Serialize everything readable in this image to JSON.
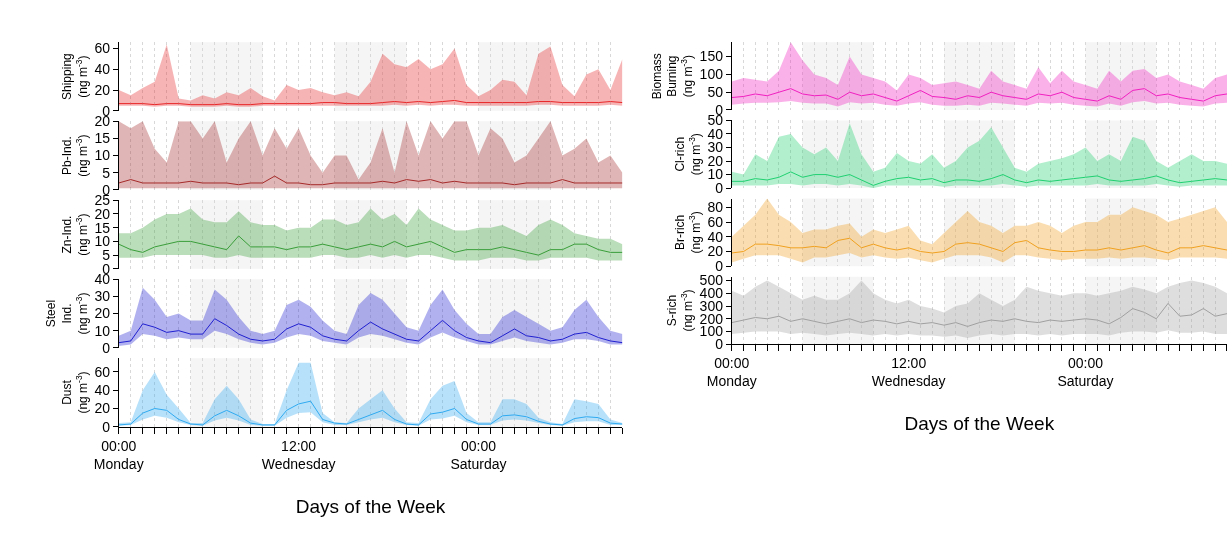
{
  "chart_data": [
    {
      "type": "line",
      "ylabel": "Shipping (ng m$^{-3}$)",
      "tick_labels": "y",
      "grid": "x",
      "ylim": [
        0,
        66
      ],
      "yticks": [
        0,
        20,
        40,
        60
      ],
      "series": [
        {
          "color": "#e8282a",
          "values": [
            7,
            7,
            7,
            6,
            7,
            7,
            6,
            6,
            6,
            7,
            6,
            6,
            7,
            7,
            7,
            7,
            7,
            8,
            8,
            7,
            7,
            7,
            8,
            9,
            8,
            9,
            8,
            9,
            10,
            8,
            8,
            8,
            8,
            8,
            8,
            9,
            9,
            8,
            8,
            8,
            8,
            9,
            8
          ],
          "lower": [
            5,
            5,
            5,
            4,
            5,
            5,
            4,
            4,
            4,
            5,
            4,
            4,
            5,
            5,
            5,
            5,
            5,
            5,
            5,
            5,
            5,
            5,
            5,
            6,
            5,
            6,
            5,
            6,
            6,
            5,
            5,
            5,
            5,
            5,
            5,
            6,
            6,
            5,
            5,
            5,
            5,
            6,
            5
          ],
          "upper": [
            20,
            15,
            22,
            28,
            64,
            12,
            10,
            15,
            12,
            18,
            15,
            22,
            14,
            10,
            25,
            20,
            22,
            18,
            15,
            18,
            14,
            28,
            55,
            45,
            42,
            50,
            40,
            45,
            60,
            25,
            14,
            20,
            30,
            28,
            15,
            55,
            62,
            25,
            14,
            35,
            40,
            20,
            50
          ]
        }
      ]
    },
    {
      "type": "line",
      "ylabel": "Pb-Ind. (ng m$^{-3}$)",
      "tick_labels": "y",
      "grid": "x",
      "ylim": [
        0,
        20
      ],
      "yticks": [
        0,
        5,
        10,
        15,
        20
      ],
      "series": [
        {
          "color": "#a52a2a",
          "values": [
            2,
            3,
            2,
            2,
            2,
            2,
            2.5,
            2,
            2,
            2,
            1.5,
            2,
            2,
            4,
            2,
            2,
            1.5,
            1.5,
            2,
            2,
            2,
            2,
            2.5,
            2,
            3,
            2.5,
            3,
            2,
            2.5,
            2,
            2,
            2,
            2,
            1.5,
            2,
            2,
            2,
            3,
            2,
            2,
            2,
            2,
            2
          ],
          "lower": [
            0.5,
            0.5,
            0.5,
            0.5,
            0.5,
            0.5,
            0.5,
            0.5,
            0.5,
            0.5,
            0.5,
            0.5,
            0.5,
            0.5,
            0.5,
            0.5,
            0.5,
            0.5,
            0.5,
            0.5,
            0.5,
            0.5,
            0.5,
            0.5,
            0.5,
            0.5,
            0.5,
            0.5,
            0.5,
            0.5,
            0.5,
            0.5,
            0.5,
            0.5,
            0.5,
            0.5,
            0.5,
            0.5,
            0.5,
            0.5,
            0.5,
            0.5,
            0.5
          ],
          "upper": [
            20,
            18,
            20,
            12,
            8,
            20,
            20,
            15,
            20,
            8,
            15,
            20,
            10,
            18,
            12,
            18,
            10,
            5,
            10,
            10,
            3,
            8,
            18,
            5,
            20,
            10,
            20,
            15,
            20,
            20,
            10,
            18,
            15,
            8,
            10,
            15,
            20,
            10,
            12,
            15,
            8,
            10,
            5
          ]
        }
      ]
    },
    {
      "type": "line",
      "ylabel": "Zn-Ind. (ng m$^{-3}$)",
      "tick_labels": "y",
      "grid": "x",
      "ylim": [
        0,
        25
      ],
      "yticks": [
        0,
        5,
        10,
        15,
        20,
        25
      ],
      "series": [
        {
          "color": "#3a9e3a",
          "values": [
            9,
            7,
            6,
            8,
            9,
            10,
            10,
            9,
            8,
            7,
            12,
            8,
            8,
            8,
            7,
            8,
            8,
            9,
            8,
            7,
            8,
            9,
            8,
            10,
            8,
            9,
            10,
            8,
            6,
            7,
            7,
            7,
            8,
            7,
            6,
            5,
            7,
            7,
            9,
            9,
            7,
            6,
            6
          ],
          "lower": [
            4,
            4,
            4,
            5,
            5,
            5,
            5,
            5,
            4,
            4,
            5,
            4,
            4,
            4,
            4,
            4,
            4,
            5,
            5,
            4,
            4,
            5,
            4,
            5,
            4,
            5,
            5,
            4,
            3,
            3,
            3,
            4,
            4,
            4,
            3,
            3,
            4,
            4,
            4,
            4,
            3,
            3,
            3
          ],
          "upper": [
            13,
            13,
            15,
            18,
            20,
            20,
            22,
            18,
            17,
            17,
            21,
            17,
            16,
            16,
            14,
            15,
            15,
            18,
            18,
            16,
            17,
            22,
            18,
            20,
            16,
            22,
            18,
            16,
            14,
            14,
            15,
            15,
            16,
            14,
            12,
            16,
            18,
            16,
            13,
            12,
            11,
            11,
            9
          ]
        }
      ]
    },
    {
      "type": "line",
      "ylabel": "Steel\nInd. (ng m$^{-3}$)",
      "tick_labels": "y",
      "grid": "x",
      "ylim": [
        0,
        40
      ],
      "yticks": [
        0,
        10,
        20,
        30,
        40
      ],
      "series": [
        {
          "color": "#2020d0",
          "values": [
            3,
            4,
            14,
            12,
            9,
            10,
            8,
            8,
            17,
            13,
            8,
            5,
            4,
            5,
            11,
            14,
            12,
            7,
            5,
            4,
            10,
            15,
            11,
            8,
            5,
            4,
            10,
            16,
            10,
            6,
            4,
            3,
            7,
            11,
            7,
            6,
            4,
            5,
            8,
            9,
            6,
            4,
            3
          ],
          "lower": [
            1,
            2,
            8,
            7,
            5,
            6,
            5,
            5,
            10,
            8,
            5,
            3,
            2,
            3,
            6,
            8,
            7,
            4,
            3,
            2,
            6,
            8,
            7,
            5,
            3,
            2,
            6,
            9,
            6,
            4,
            2,
            2,
            4,
            6,
            4,
            3,
            2,
            3,
            5,
            5,
            4,
            2,
            2
          ],
          "upper": [
            7,
            10,
            35,
            28,
            18,
            20,
            16,
            16,
            34,
            28,
            18,
            10,
            8,
            10,
            25,
            28,
            24,
            16,
            10,
            8,
            25,
            32,
            28,
            20,
            12,
            10,
            25,
            34,
            22,
            14,
            8,
            8,
            18,
            22,
            18,
            14,
            10,
            12,
            22,
            28,
            18,
            10,
            8
          ]
        }
      ]
    },
    {
      "type": "line",
      "ylabel": "Dust (ng m$^{-3}$)",
      "xlabel": "Days of the Week",
      "grid": "x",
      "categories": [
        "00:00\nMonday",
        null,
        null,
        null,
        null,
        null,
        null,
        null,
        null,
        null,
        null,
        null,
        null,
        null,
        null,
        "12:00\nWednesday",
        null,
        null,
        null,
        null,
        null,
        null,
        null,
        null,
        null,
        null,
        null,
        null,
        null,
        null,
        "00:00\nSaturday",
        null,
        null,
        null,
        null,
        null,
        null,
        null,
        null,
        null,
        null,
        null,
        null
      ],
      "ylim": [
        0,
        75
      ],
      "yticks": [
        0,
        20,
        40,
        60
      ],
      "series": [
        {
          "color": "#30aaf0",
          "values": [
            2,
            3,
            15,
            20,
            18,
            8,
            3,
            2,
            12,
            18,
            12,
            4,
            2,
            2,
            18,
            25,
            28,
            8,
            4,
            3,
            8,
            13,
            18,
            8,
            3,
            2,
            14,
            16,
            20,
            8,
            3,
            3,
            12,
            13,
            11,
            6,
            3,
            2,
            9,
            11,
            10,
            4,
            3
          ],
          "lower": [
            1,
            2,
            8,
            12,
            10,
            5,
            2,
            1,
            7,
            10,
            7,
            2,
            1,
            1,
            10,
            15,
            16,
            5,
            2,
            2,
            5,
            8,
            10,
            5,
            2,
            1,
            8,
            9,
            12,
            5,
            2,
            2,
            7,
            8,
            7,
            4,
            2,
            1,
            5,
            6,
            6,
            2,
            2
          ],
          "upper": [
            4,
            5,
            40,
            60,
            35,
            20,
            4,
            4,
            30,
            45,
            30,
            8,
            3,
            3,
            40,
            70,
            70,
            15,
            5,
            4,
            20,
            30,
            40,
            20,
            5,
            4,
            30,
            45,
            50,
            15,
            5,
            5,
            30,
            30,
            25,
            10,
            5,
            3,
            30,
            28,
            25,
            8,
            4
          ]
        }
      ]
    },
    {
      "type": "line",
      "ylabel": "Biomass\nBurning (ng m$^{-3}$)",
      "tick_labels": "y",
      "grid": "x",
      "ylim": [
        0,
        190
      ],
      "yticks": [
        0,
        50,
        100,
        150
      ],
      "series": [
        {
          "color": "#f020c0",
          "values": [
            35,
            38,
            45,
            40,
            50,
            60,
            45,
            40,
            42,
            30,
            50,
            40,
            45,
            35,
            25,
            40,
            55,
            38,
            35,
            30,
            40,
            35,
            50,
            40,
            35,
            30,
            45,
            40,
            50,
            35,
            30,
            25,
            40,
            30,
            55,
            60,
            40,
            45,
            35,
            30,
            25,
            40,
            45
          ],
          "lower": [
            15,
            18,
            20,
            20,
            22,
            25,
            20,
            18,
            18,
            10,
            22,
            18,
            20,
            15,
            12,
            18,
            22,
            15,
            12,
            12,
            15,
            12,
            20,
            18,
            15,
            12,
            20,
            18,
            20,
            15,
            12,
            10,
            18,
            12,
            22,
            25,
            18,
            20,
            15,
            12,
            10,
            18,
            20
          ],
          "upper": [
            80,
            90,
            85,
            80,
            110,
            190,
            140,
            100,
            90,
            70,
            150,
            100,
            90,
            80,
            55,
            100,
            90,
            70,
            75,
            80,
            70,
            60,
            110,
            80,
            70,
            60,
            120,
            75,
            110,
            80,
            70,
            60,
            110,
            80,
            110,
            115,
            90,
            100,
            80,
            70,
            60,
            90,
            100
          ]
        }
      ]
    },
    {
      "type": "line",
      "ylabel": "Cl-rich (ng m$^{-3}$)",
      "tick_labels": "y",
      "grid": "x",
      "ylim": [
        0,
        50
      ],
      "yticks": [
        0,
        10,
        20,
        30,
        40,
        50
      ],
      "series": [
        {
          "color": "#20d070",
          "values": [
            5,
            5,
            7,
            6,
            8,
            12,
            8,
            10,
            10,
            8,
            10,
            6,
            2,
            5,
            7,
            8,
            6,
            7,
            4,
            6,
            6,
            5,
            7,
            10,
            6,
            4,
            6,
            5,
            6,
            7,
            8,
            9,
            6,
            5,
            6,
            7,
            9,
            6,
            4,
            5,
            6,
            7,
            6
          ],
          "lower": [
            2,
            2,
            2,
            2,
            3,
            3,
            2,
            3,
            3,
            2,
            3,
            2,
            0,
            2,
            2,
            2,
            2,
            2,
            1,
            2,
            2,
            2,
            2,
            3,
            2,
            1,
            2,
            2,
            2,
            2,
            2,
            3,
            2,
            2,
            2,
            2,
            3,
            2,
            1,
            2,
            2,
            2,
            2
          ],
          "upper": [
            12,
            10,
            25,
            20,
            38,
            40,
            30,
            25,
            30,
            20,
            48,
            25,
            12,
            15,
            26,
            20,
            18,
            25,
            15,
            20,
            30,
            35,
            45,
            30,
            15,
            12,
            18,
            20,
            22,
            25,
            30,
            20,
            25,
            20,
            38,
            35,
            20,
            15,
            20,
            25,
            20,
            20,
            18
          ]
        }
      ]
    },
    {
      "type": "line",
      "ylabel": "Br-rich (ng m$^{-3}$)",
      "tick_labels": "y",
      "grid": "x",
      "ylim": [
        0,
        92
      ],
      "yticks": [
        0,
        20,
        40,
        60,
        80
      ],
      "series": [
        {
          "color": "#f0a020",
          "values": [
            18,
            20,
            30,
            30,
            28,
            25,
            25,
            27,
            25,
            35,
            38,
            25,
            30,
            25,
            22,
            25,
            20,
            18,
            20,
            30,
            32,
            30,
            25,
            20,
            32,
            35,
            25,
            22,
            20,
            20,
            22,
            22,
            25,
            22,
            25,
            28,
            22,
            18,
            25,
            25,
            28,
            25,
            22
          ],
          "lower": [
            5,
            10,
            15,
            15,
            15,
            10,
            5,
            12,
            12,
            15,
            18,
            12,
            15,
            12,
            10,
            12,
            8,
            5,
            10,
            15,
            15,
            15,
            12,
            5,
            15,
            15,
            12,
            10,
            8,
            10,
            10,
            10,
            12,
            10,
            12,
            12,
            10,
            8,
            12,
            12,
            12,
            12,
            10
          ],
          "upper": [
            40,
            55,
            70,
            92,
            70,
            60,
            45,
            50,
            50,
            55,
            58,
            40,
            50,
            45,
            50,
            55,
            35,
            30,
            45,
            60,
            75,
            60,
            55,
            45,
            55,
            55,
            60,
            55,
            45,
            55,
            60,
            60,
            70,
            70,
            80,
            75,
            70,
            60,
            65,
            70,
            75,
            80,
            60
          ]
        }
      ]
    },
    {
      "type": "line",
      "ylabel": "S-rich (ng m$^{-3}$)",
      "xlabel": "Days of the Week",
      "grid": "x",
      "categories": [
        "00:00\nMonday",
        null,
        null,
        null,
        null,
        null,
        null,
        null,
        null,
        null,
        null,
        null,
        null,
        null,
        null,
        "12:00\nWednesday",
        null,
        null,
        null,
        null,
        null,
        null,
        null,
        null,
        null,
        null,
        null,
        null,
        null,
        null,
        "00:00\nSaturday",
        null,
        null,
        null,
        null,
        null,
        null,
        null,
        null,
        null,
        null,
        null,
        null
      ],
      "ylim": [
        0,
        530
      ],
      "yticks": [
        0,
        100,
        200,
        300,
        400,
        500
      ],
      "series": [
        {
          "color": "#a0a0a0",
          "values": [
            170,
            190,
            210,
            200,
            220,
            180,
            200,
            180,
            160,
            180,
            200,
            170,
            190,
            180,
            160,
            180,
            160,
            170,
            150,
            170,
            140,
            170,
            190,
            180,
            200,
            180,
            170,
            190,
            180,
            190,
            200,
            190,
            160,
            210,
            280,
            250,
            200,
            320,
            220,
            230,
            280,
            220,
            240
          ],
          "lower": [
            80,
            90,
            100,
            100,
            100,
            80,
            90,
            80,
            70,
            80,
            90,
            80,
            70,
            80,
            70,
            80,
            70,
            70,
            60,
            70,
            50,
            70,
            80,
            70,
            80,
            80,
            70,
            80,
            70,
            80,
            80,
            80,
            70,
            90,
            100,
            100,
            90,
            110,
            90,
            90,
            100,
            80,
            80
          ],
          "upper": [
            420,
            380,
            450,
            500,
            450,
            400,
            350,
            380,
            350,
            350,
            400,
            500,
            400,
            350,
            320,
            350,
            300,
            280,
            250,
            300,
            320,
            400,
            350,
            300,
            350,
            450,
            420,
            400,
            380,
            400,
            400,
            380,
            400,
            420,
            450,
            430,
            400,
            450,
            480,
            500,
            480,
            450,
            400
          ]
        }
      ]
    }
  ]
}
